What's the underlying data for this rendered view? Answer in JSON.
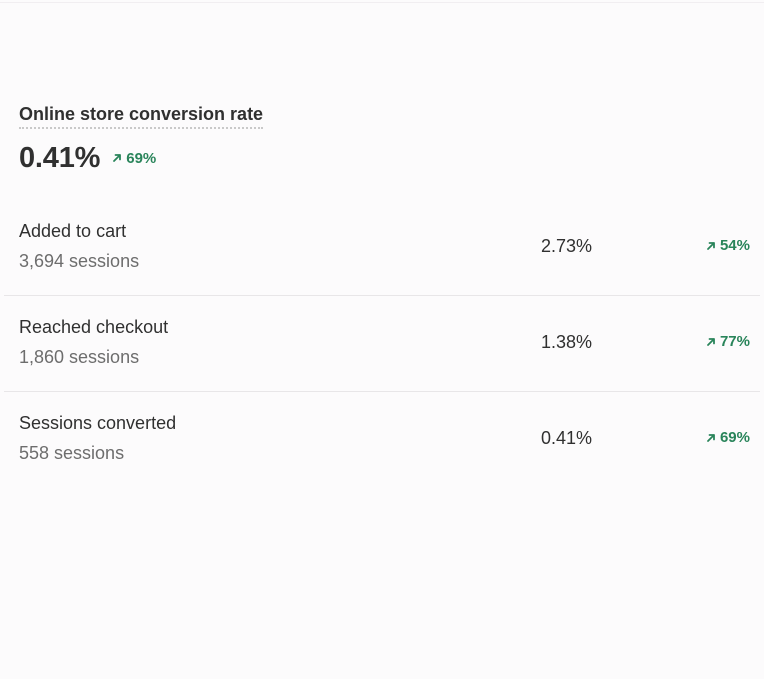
{
  "metric": {
    "title": "Online store conversion rate",
    "value": "0.41%",
    "change": "69%",
    "change_direction": "up"
  },
  "rows": [
    {
      "label": "Added to cart",
      "sessions": "3,694 sessions",
      "rate": "2.73%",
      "change": "54%"
    },
    {
      "label": "Reached checkout",
      "sessions": "1,860 sessions",
      "rate": "1.38%",
      "change": "77%"
    },
    {
      "label": "Sessions converted",
      "sessions": "558 sessions",
      "rate": "0.41%",
      "change": "69%"
    }
  ],
  "colors": {
    "positive": "#29845a",
    "text": "#303030",
    "subdued": "#6d6d6d",
    "divider": "#e8e6e8",
    "background": "#fcfbfc"
  },
  "icons": {
    "trend": "arrow-up-right-icon"
  }
}
